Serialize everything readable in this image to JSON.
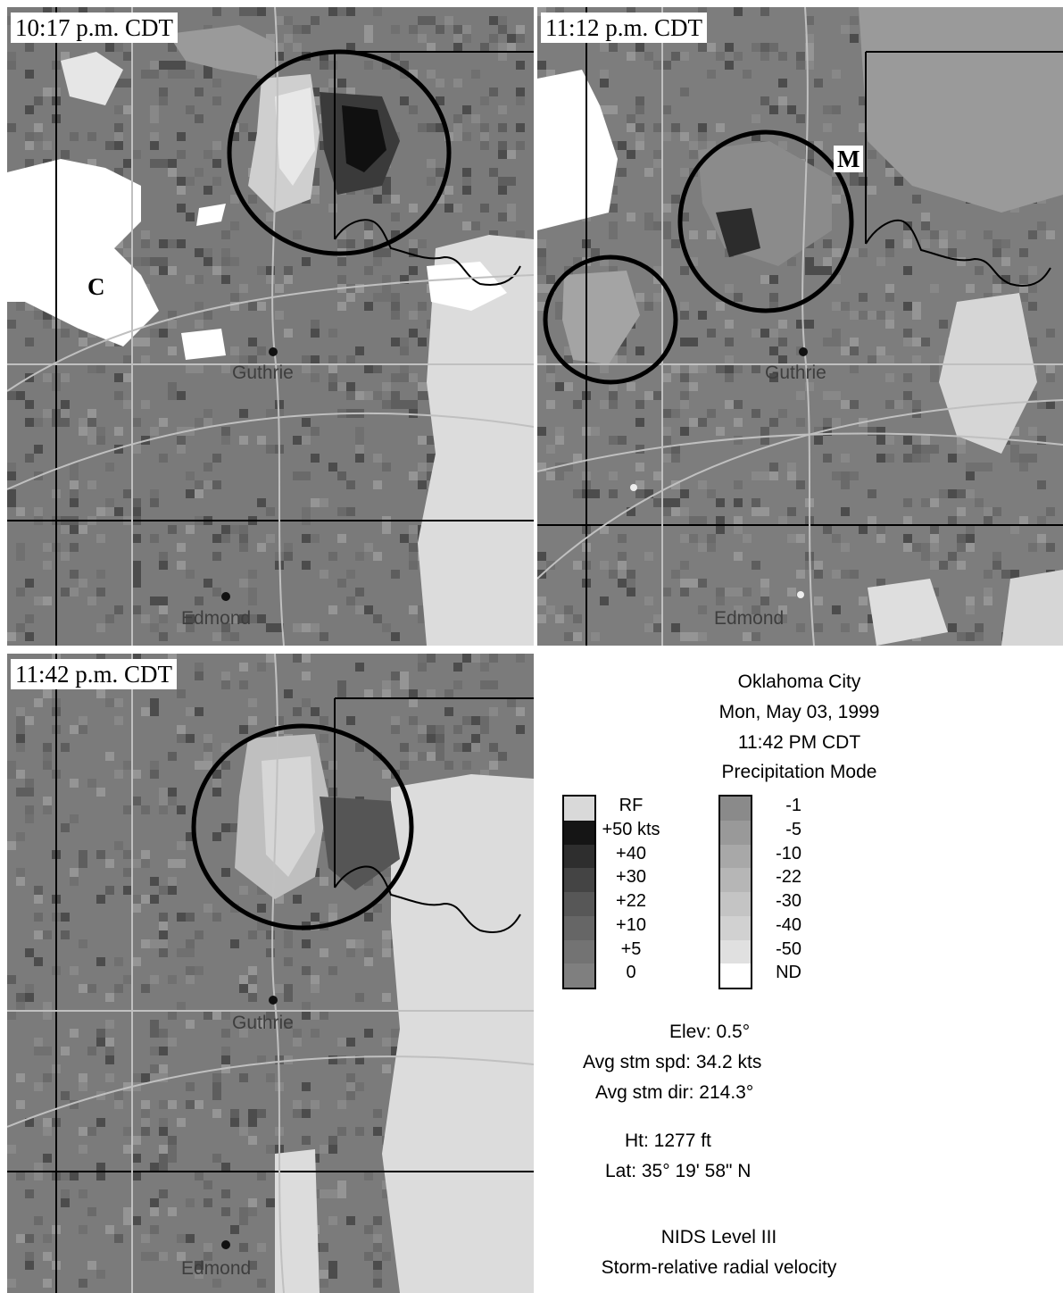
{
  "panels": [
    {
      "time": "10:17 p.m. CDT",
      "letters": [
        "C"
      ],
      "cities": [
        "Guthrie",
        "Edmond"
      ]
    },
    {
      "time": "11:12 p.m. CDT",
      "letters": [
        "M"
      ],
      "cities": [
        "Guthrie",
        "Edmond"
      ]
    },
    {
      "time": "11:42 p.m. CDT",
      "letters": [],
      "cities": [
        "Guthrie",
        "Edmond"
      ]
    }
  ],
  "info": {
    "location": "Oklahoma City",
    "date": "Mon, May 03, 1999",
    "time": "11:42 PM CDT",
    "mode": "Precipitation Mode",
    "elev": "Elev: 0.5°",
    "avg_speed": "Avg stm spd: 34.2 kts",
    "avg_dir": "Avg stm dir: 214.3°",
    "height": "Ht: 1277 ft",
    "lat": "Lat: 35° 19' 58\" N",
    "product": "NIDS Level III",
    "product_desc": "Storm-relative radial velocity"
  },
  "legend": {
    "inbound": [
      {
        "label": "RF",
        "color": "#d9d9d9"
      },
      {
        "label": "+50 kts",
        "color": "#151515"
      },
      {
        "label": "+40",
        "color": "#2e2e2e"
      },
      {
        "label": "+30",
        "color": "#444444"
      },
      {
        "label": "+22",
        "color": "#575757"
      },
      {
        "label": "+10",
        "color": "#666666"
      },
      {
        "label": "+5",
        "color": "#737373"
      },
      {
        "label": "0",
        "color": "#7f7f7f"
      }
    ],
    "outbound": [
      {
        "label": "-1",
        "color": "#8a8a8a"
      },
      {
        "label": "-5",
        "color": "#999999"
      },
      {
        "label": "-10",
        "color": "#a8a8a8"
      },
      {
        "label": "-22",
        "color": "#b6b6b6"
      },
      {
        "label": "-30",
        "color": "#c4c4c4"
      },
      {
        "label": "-40",
        "color": "#d1d1d1"
      },
      {
        "label": "-50",
        "color": "#e0e0e0"
      },
      {
        "label": "ND",
        "color": "#ffffff"
      }
    ]
  }
}
